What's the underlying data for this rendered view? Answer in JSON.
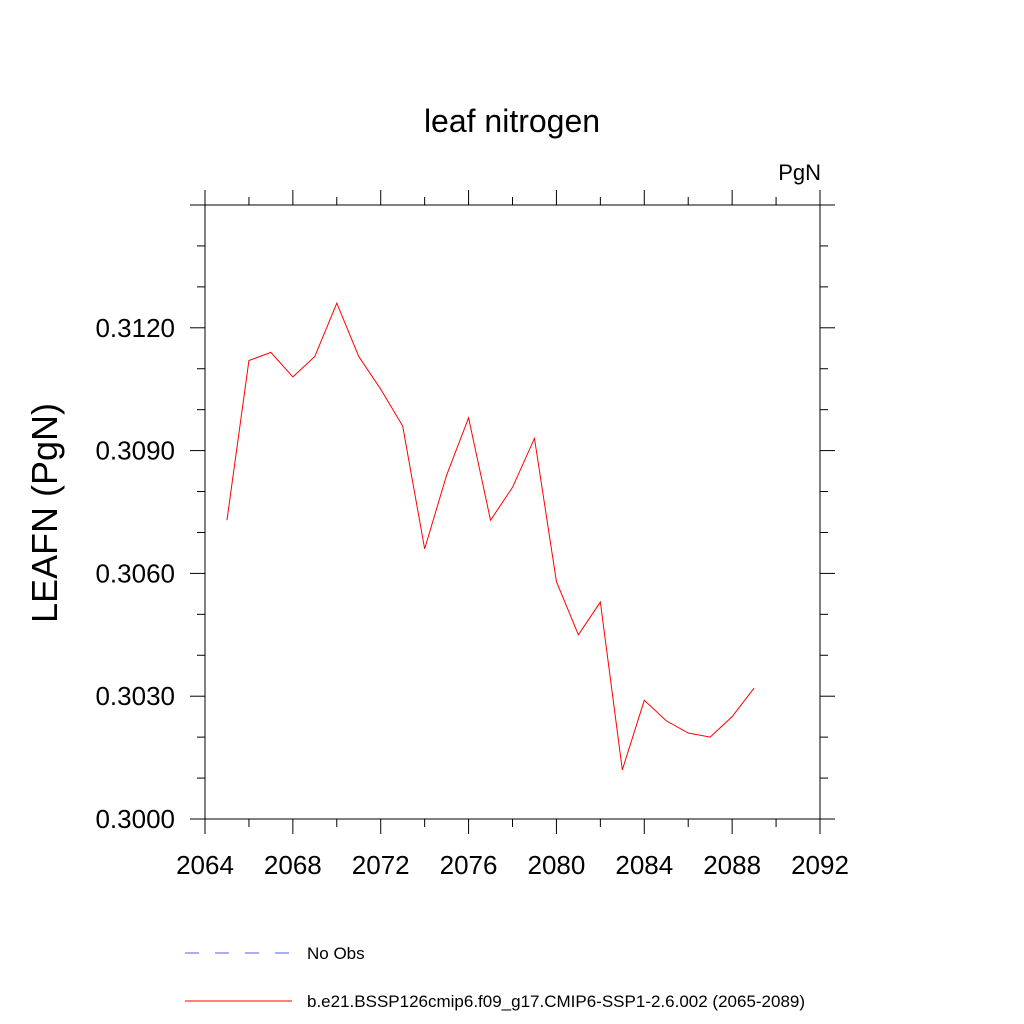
{
  "chart_data": {
    "type": "line",
    "title": "leaf nitrogen",
    "units_label": "PgN",
    "ylabel": "LEAFN  (PgN)",
    "xlabel": "",
    "xlim": [
      2064,
      2092
    ],
    "ylim": [
      0.3,
      0.315
    ],
    "xticks": [
      "2064",
      "2068",
      "2072",
      "2076",
      "2080",
      "2084",
      "2088",
      "2092"
    ],
    "yticks": [
      "0.3000",
      "0.3030",
      "0.3060",
      "0.3090",
      "0.3120"
    ],
    "x": [
      2065,
      2066,
      2067,
      2068,
      2069,
      2070,
      2071,
      2072,
      2073,
      2074,
      2075,
      2076,
      2077,
      2078,
      2079,
      2080,
      2081,
      2082,
      2083,
      2084,
      2085,
      2086,
      2087,
      2088,
      2089
    ],
    "series": [
      {
        "name": "b.e21.BSSP126cmip6.f09_g17.CMIP6-SSP1-2.6.002 (2065-2089)",
        "color": "#ff0000",
        "values": [
          0.3073,
          0.3112,
          0.3114,
          0.3108,
          0.3113,
          0.3126,
          0.3113,
          0.3105,
          0.3096,
          0.3066,
          0.3084,
          0.3098,
          0.3073,
          0.3081,
          0.3093,
          0.3058,
          0.3045,
          0.3053,
          0.3012,
          0.3029,
          0.3024,
          0.3021,
          0.302,
          0.3025,
          0.3032
        ]
      }
    ],
    "legend": [
      {
        "label": "No Obs",
        "color": "#0000ff",
        "style": "dashed"
      },
      {
        "label": "b.e21.BSSP126cmip6.f09_g17.CMIP6-SSP1-2.6.002 (2065-2089)",
        "color": "#ff0000",
        "style": "solid"
      }
    ],
    "legend_position": "bottom",
    "grid": false
  }
}
